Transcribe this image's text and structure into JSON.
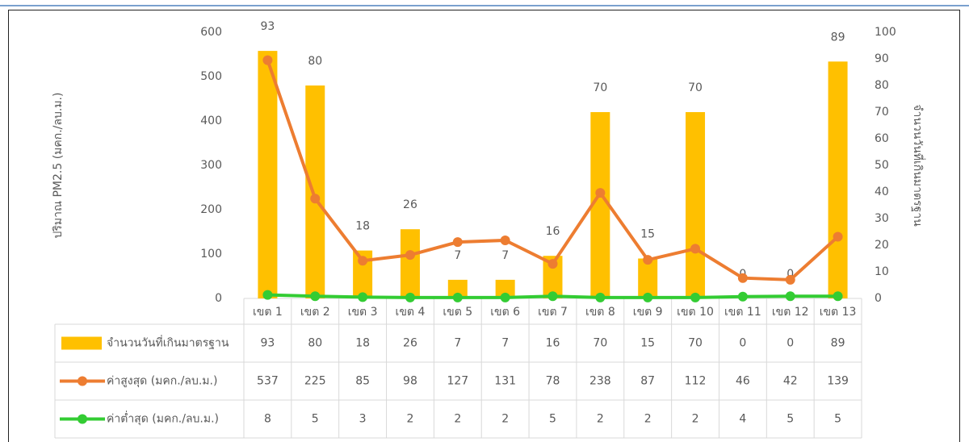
{
  "chart_data": {
    "type": "bar",
    "categories": [
      "เขต 1",
      "เขต 2",
      "เขต 3",
      "เขต 4",
      "เขต 5",
      "เขต 6",
      "เขต 7",
      "เขต 8",
      "เขต 9",
      "เขต 10",
      "เขต 11",
      "เขต 12",
      "เขต 13"
    ],
    "series": [
      {
        "name": "จำนวนวันที่เกินมาตรฐาน",
        "type": "bar",
        "axis": "y2",
        "color": "#ffc000",
        "values": [
          93,
          80,
          18,
          26,
          7,
          7,
          16,
          70,
          15,
          70,
          0,
          0,
          89
        ]
      },
      {
        "name": "ค่าสูงสุด (มคก./ลบ.ม.)",
        "type": "line",
        "color": "#ed7d31",
        "values": [
          537,
          225,
          85,
          98,
          127,
          131,
          78,
          238,
          87,
          112,
          46,
          42,
          139
        ]
      },
      {
        "name": "ค่าต่ำสุด (มคก./ลบ.ม.)",
        "type": "line",
        "color": "#33cc33",
        "values": [
          8,
          5,
          3,
          2,
          2,
          2,
          5,
          2,
          2,
          2,
          4,
          5,
          5
        ]
      }
    ],
    "ylim": [
      0,
      600
    ],
    "yticks": [
      0,
      100,
      200,
      300,
      400,
      500,
      600
    ],
    "y2lim": [
      0,
      100
    ],
    "y2ticks": [
      0,
      10,
      20,
      30,
      40,
      50,
      60,
      70,
      80,
      90,
      100
    ],
    "y_label": "ปริมาณ PM2.5 (มคก./ลบ.ม.)",
    "y2_label": "จำนวนวันที่เกินมาตรฐาน"
  }
}
